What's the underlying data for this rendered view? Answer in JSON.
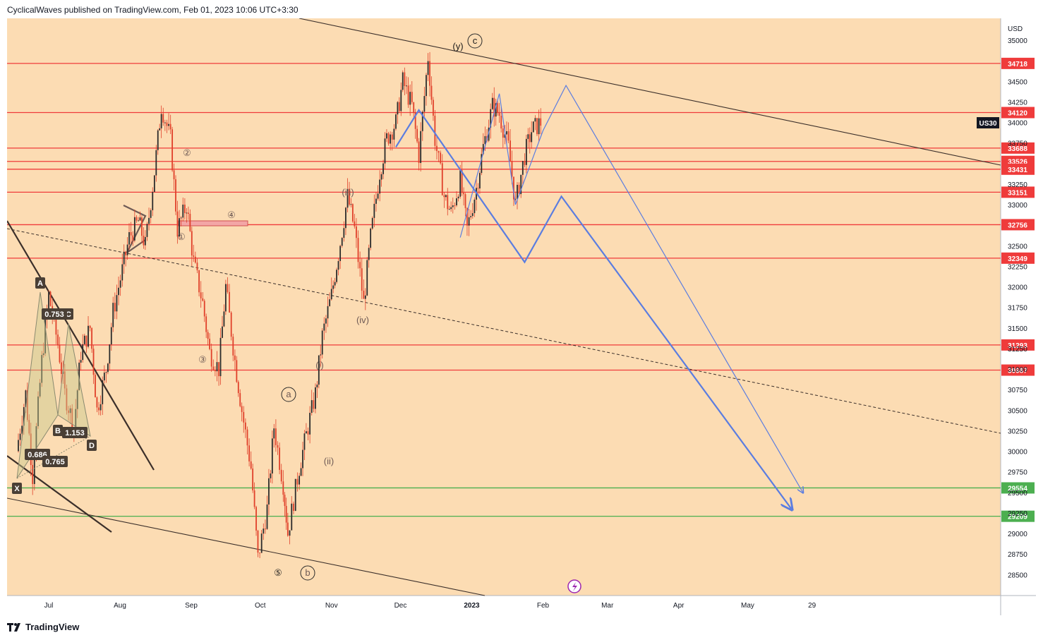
{
  "header": {
    "text": "CyclicalWaves published on TradingView.com, Feb 01, 2023 10:06 UTC+3:30"
  },
  "footer": {
    "brand": "TradingView"
  },
  "colors": {
    "background": "#fcdcb3",
    "candle": "#e0402a",
    "hline_red": "#ef3b3b",
    "hline_green": "#4caf50",
    "projection": "#5b7de0",
    "trendline": "#3b2f2a"
  },
  "chart_data": {
    "type": "candlestick",
    "symbol": "US30",
    "currency": "USD",
    "ylim": [
      28350,
      35250
    ],
    "y_ticks": [
      "35000",
      "34500",
      "34250",
      "34000",
      "33750",
      "33250",
      "33000",
      "32500",
      "32250",
      "32000",
      "31750",
      "31500",
      "31250",
      "31000",
      "30750",
      "30500",
      "30250",
      "30000",
      "29750",
      "29500",
      "29250",
      "29000",
      "28750",
      "28500"
    ],
    "x_ticks": [
      "Jul",
      "Aug",
      "Sep",
      "Oct",
      "Nov",
      "Dec",
      "2023",
      "Feb",
      "Mar",
      "Apr",
      "May",
      "29"
    ],
    "price_levels": [
      {
        "value": "34718",
        "color": "red"
      },
      {
        "value": "34120",
        "color": "red"
      },
      {
        "value": "33688",
        "color": "red"
      },
      {
        "value": "33526",
        "color": "red"
      },
      {
        "value": "33431",
        "color": "red"
      },
      {
        "value": "33151",
        "color": "red"
      },
      {
        "value": "32756",
        "color": "red"
      },
      {
        "value": "32349",
        "color": "red"
      },
      {
        "value": "31293",
        "color": "red"
      },
      {
        "value": "30987",
        "color": "red"
      },
      {
        "value": "29554",
        "color": "green"
      },
      {
        "value": "29209",
        "color": "green"
      }
    ],
    "price_path": [
      [
        "2022-06-17",
        30000
      ],
      [
        "2022-06-21",
        30700
      ],
      [
        "2022-06-24",
        29700
      ],
      [
        "2022-06-28",
        31100
      ],
      [
        "2022-07-01",
        31900
      ],
      [
        "2022-07-05",
        31300
      ],
      [
        "2022-07-08",
        30700
      ],
      [
        "2022-07-12",
        30300
      ],
      [
        "2022-07-15",
        31200
      ],
      [
        "2022-07-19",
        31500
      ],
      [
        "2022-07-22",
        30500
      ],
      [
        "2022-07-26",
        31000
      ],
      [
        "2022-07-29",
        31700
      ],
      [
        "2022-08-02",
        32200
      ],
      [
        "2022-08-05",
        32600
      ],
      [
        "2022-08-09",
        32800
      ],
      [
        "2022-08-12",
        32500
      ],
      [
        "2022-08-16",
        33400
      ],
      [
        "2022-08-19",
        34200
      ],
      [
        "2022-08-23",
        33800
      ],
      [
        "2022-08-26",
        32700
      ],
      [
        "2022-08-30",
        33000
      ],
      [
        "2022-09-02",
        32300
      ],
      [
        "2022-09-06",
        31800
      ],
      [
        "2022-09-09",
        31200
      ],
      [
        "2022-09-13",
        31000
      ],
      [
        "2022-09-16",
        32000
      ],
      [
        "2022-09-20",
        31100
      ],
      [
        "2022-09-23",
        30500
      ],
      [
        "2022-09-27",
        29800
      ],
      [
        "2022-09-30",
        28700
      ],
      [
        "2022-10-04",
        29300
      ],
      [
        "2022-10-07",
        30300
      ],
      [
        "2022-10-11",
        29600
      ],
      [
        "2022-10-13",
        29000
      ],
      [
        "2022-10-18",
        29800
      ],
      [
        "2022-10-21",
        30200
      ],
      [
        "2022-10-25",
        30700
      ],
      [
        "2022-10-28",
        31400
      ],
      [
        "2022-11-01",
        31900
      ],
      [
        "2022-11-04",
        32400
      ],
      [
        "2022-11-08",
        33100
      ],
      [
        "2022-11-11",
        32700
      ],
      [
        "2022-11-15",
        31800
      ],
      [
        "2022-11-18",
        32600
      ],
      [
        "2022-11-22",
        33400
      ],
      [
        "2022-11-25",
        33800
      ],
      [
        "2022-11-29",
        34000
      ],
      [
        "2022-12-02",
        34500
      ],
      [
        "2022-12-06",
        34200
      ],
      [
        "2022-12-09",
        33600
      ],
      [
        "2022-12-13",
        34800
      ],
      [
        "2022-12-16",
        33800
      ],
      [
        "2022-12-20",
        33100
      ],
      [
        "2022-12-23",
        32900
      ],
      [
        "2022-12-27",
        33300
      ],
      [
        "2022-12-30",
        32700
      ],
      [
        "2023-01-03",
        33200
      ],
      [
        "2023-01-06",
        33700
      ],
      [
        "2023-01-10",
        34200
      ],
      [
        "2023-01-13",
        34100
      ],
      [
        "2023-01-17",
        33700
      ],
      [
        "2023-01-20",
        33000
      ],
      [
        "2023-01-24",
        33600
      ],
      [
        "2023-01-27",
        33900
      ],
      [
        "2023-01-31",
        34000
      ]
    ],
    "elliott_labels": [
      "(y)",
      "c",
      "②",
      "④",
      "①",
      "③",
      "⑤",
      "a",
      "b",
      "(iii)",
      "(iv)",
      "(i)",
      "(ii)"
    ],
    "harmonic_pattern": {
      "points": [
        "X",
        "A",
        "B",
        "C",
        "D"
      ],
      "ratios": [
        "0.753",
        "1.153",
        "0.686",
        "0.765"
      ]
    },
    "projections": [
      {
        "name": "thick",
        "path": [
          [
            "2022-11-29",
            33700
          ],
          [
            "2022-12-09",
            34150
          ],
          [
            "2023-01-24",
            32300
          ],
          [
            "2023-02-09",
            33100
          ],
          [
            "2023-05-20",
            29300
          ]
        ]
      },
      {
        "name": "thin",
        "path": [
          [
            "2022-12-27",
            32600
          ],
          [
            "2023-01-13",
            34350
          ],
          [
            "2023-01-20",
            33000
          ],
          [
            "2023-02-01",
            33900
          ],
          [
            "2023-02-11",
            34450
          ],
          [
            "2023-05-25",
            29500
          ]
        ]
      }
    ]
  }
}
